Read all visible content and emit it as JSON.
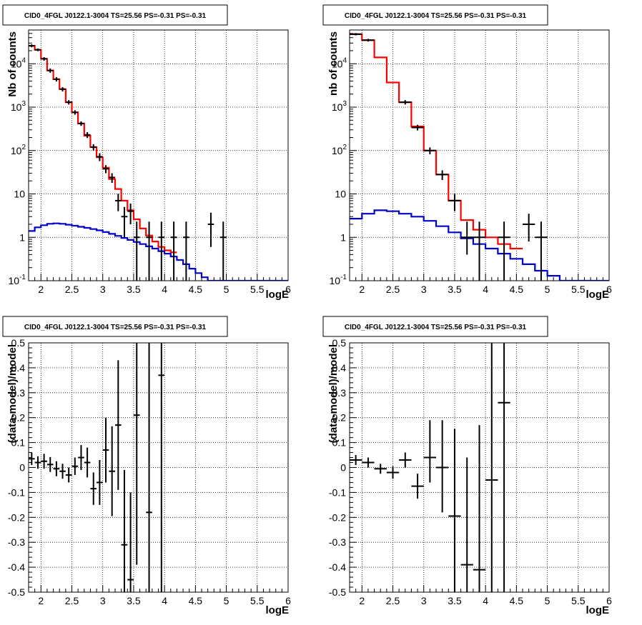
{
  "chart_data": [
    {
      "type": "step-histogram-with-errorbars",
      "title": "CID0_4FGL J0122.1-3004 TS=25.56 PS=-0.31 PS=-0.31",
      "xlabel": "logE",
      "ylabel": "Nb of counts",
      "xlim": [
        1.8,
        6
      ],
      "ylim": [
        0.1,
        60000
      ],
      "yscale": "log",
      "grid": true,
      "x_ticks": [
        "2",
        "2.5",
        "3",
        "3.5",
        "4",
        "4.5",
        "5",
        "5.5",
        "6"
      ],
      "y_ticks": [
        "10^-1",
        "1",
        "10",
        "10^2",
        "10^3",
        "10^4"
      ],
      "series": [
        {
          "color": "#ff0000",
          "bin_width": 0.1,
          "x_start": 1.8,
          "values": [
            26000,
            21000,
            13000,
            7000,
            4400,
            2600,
            1300,
            760,
            420,
            220,
            120,
            70,
            40,
            22,
            13,
            7,
            4.2,
            2.6,
            1.6,
            1.1,
            0.8,
            0.6,
            0.5,
            0.45
          ]
        },
        {
          "color": "#0000cc",
          "bin_width": 0.1,
          "x_start": 1.8,
          "values": [
            1.4,
            1.7,
            1.9,
            2.05,
            2.1,
            2.05,
            1.95,
            1.85,
            1.75,
            1.65,
            1.55,
            1.45,
            1.32,
            1.2,
            1.08,
            0.97,
            0.87,
            0.78,
            0.7,
            0.62,
            0.55,
            0.48,
            0.42,
            0.36,
            0.3,
            0.24,
            0.19,
            0.15,
            0.12,
            0.1,
            0.1,
            0.1,
            0.1,
            0.1,
            0.1,
            0.1,
            0.1,
            0.1,
            0.1,
            0.1,
            0.1,
            0.1
          ]
        }
      ],
      "points": [
        {
          "x": 1.85,
          "y": 26000,
          "el": 2000,
          "eh": 2000
        },
        {
          "x": 1.95,
          "y": 21000,
          "el": 1500,
          "eh": 1500
        },
        {
          "x": 2.05,
          "y": 13000,
          "el": 1200,
          "eh": 1200
        },
        {
          "x": 2.15,
          "y": 7000,
          "el": 800,
          "eh": 800
        },
        {
          "x": 2.25,
          "y": 4400,
          "el": 500,
          "eh": 500
        },
        {
          "x": 2.35,
          "y": 2600,
          "el": 300,
          "eh": 300
        },
        {
          "x": 2.45,
          "y": 1300,
          "el": 150,
          "eh": 150
        },
        {
          "x": 2.55,
          "y": 760,
          "el": 90,
          "eh": 90
        },
        {
          "x": 2.65,
          "y": 420,
          "el": 50,
          "eh": 50
        },
        {
          "x": 2.75,
          "y": 230,
          "el": 35,
          "eh": 35
        },
        {
          "x": 2.85,
          "y": 120,
          "el": 20,
          "eh": 20
        },
        {
          "x": 2.95,
          "y": 72,
          "el": 15,
          "eh": 15
        },
        {
          "x": 3.05,
          "y": 38,
          "el": 8,
          "eh": 8
        },
        {
          "x": 3.15,
          "y": 24,
          "el": 6,
          "eh": 6
        },
        {
          "x": 3.25,
          "y": 7,
          "el": 3,
          "eh": 3
        },
        {
          "x": 3.35,
          "y": 3,
          "el": 2,
          "eh": 2
        },
        {
          "x": 3.45,
          "y": 4,
          "el": 2,
          "eh": 2
        },
        {
          "x": 3.55,
          "y": 1,
          "el": 0.95,
          "eh": 1.3
        },
        {
          "x": 3.75,
          "y": 1,
          "el": 0.95,
          "eh": 1.3
        },
        {
          "x": 3.95,
          "y": 1,
          "el": 0.95,
          "eh": 1.3
        },
        {
          "x": 4.15,
          "y": 1,
          "el": 0.95,
          "eh": 1.3
        },
        {
          "x": 4.35,
          "y": 1,
          "el": 0.95,
          "eh": 1.3
        },
        {
          "x": 4.75,
          "y": 2,
          "el": 1.4,
          "eh": 1.7
        },
        {
          "x": 4.95,
          "y": 1,
          "el": 0.95,
          "eh": 1.3
        }
      ]
    },
    {
      "type": "step-histogram-with-errorbars",
      "title": "CID0_4FGL J0122.1-3004 TS=25.56 PS=-0.31 PS=-0.31",
      "xlabel": "logE",
      "ylabel": "nb of counts",
      "xlim": [
        1.8,
        6
      ],
      "ylim": [
        0.1,
        60000
      ],
      "yscale": "log",
      "grid": true,
      "x_ticks": [
        "2",
        "2.5",
        "3",
        "3.5",
        "4",
        "4.5",
        "5",
        "5.5",
        "6"
      ],
      "y_ticks": [
        "10^-1",
        "1",
        "10",
        "10^2",
        "10^3",
        "10^4"
      ],
      "series": [
        {
          "color": "#ff0000",
          "bin_width": 0.2,
          "x_start": 1.8,
          "values": [
            48000,
            35000,
            14000,
            3700,
            1300,
            360,
            100,
            28,
            7,
            2.5,
            1.5,
            1.0,
            0.7,
            0.55
          ]
        },
        {
          "color": "#0000cc",
          "bin_width": 0.2,
          "x_start": 1.8,
          "values": [
            2.7,
            3.5,
            4.2,
            4.0,
            3.5,
            3.0,
            2.4,
            1.8,
            1.3,
            0.95,
            0.7,
            0.55,
            0.42,
            0.32,
            0.24,
            0.17,
            0.13,
            0.1,
            0.1,
            0.1,
            0.1
          ]
        }
      ],
      "points": [
        {
          "x": 1.9,
          "y": 48000,
          "el": 3000,
          "eh": 3000
        },
        {
          "x": 2.1,
          "y": 35000,
          "el": 2500,
          "eh": 2500
        },
        {
          "x": 2.7,
          "y": 1300,
          "el": 150,
          "eh": 150
        },
        {
          "x": 2.9,
          "y": 340,
          "el": 50,
          "eh": 50
        },
        {
          "x": 3.1,
          "y": 100,
          "el": 18,
          "eh": 18
        },
        {
          "x": 3.3,
          "y": 28,
          "el": 7,
          "eh": 7
        },
        {
          "x": 3.5,
          "y": 7,
          "el": 3,
          "eh": 3
        },
        {
          "x": 3.7,
          "y": 1,
          "el": 0.6,
          "eh": 1.3
        },
        {
          "x": 3.9,
          "y": 1,
          "el": 0.95,
          "eh": 1.3
        },
        {
          "x": 4.3,
          "y": 1,
          "el": 0.95,
          "eh": 1.3
        },
        {
          "x": 4.7,
          "y": 2,
          "el": 1.2,
          "eh": 1.5
        },
        {
          "x": 4.9,
          "y": 1,
          "el": 0.95,
          "eh": 1.3
        }
      ]
    },
    {
      "type": "scatter-with-errorbars",
      "title": "CID0_4FGL J0122.1-3004 TS=25.56 PS=-0.31 PS=-0.31",
      "xlabel": "logE",
      "ylabel": "(data-model)/model",
      "xlim": [
        1.8,
        6
      ],
      "ylim": [
        -0.5,
        0.5
      ],
      "yscale": "linear",
      "grid": true,
      "x_ticks": [
        "2",
        "2.5",
        "3",
        "3.5",
        "4",
        "4.5",
        "5",
        "5.5",
        "6"
      ],
      "y_ticks": [
        "-0.5",
        "-0.4",
        "-0.3",
        "-0.2",
        "-0.1",
        "0",
        "0.1",
        "0.2",
        "0.3",
        "0.4",
        "0.5"
      ],
      "points": [
        {
          "x": 1.85,
          "y": 0.035,
          "el": 0.025,
          "eh": 0.025
        },
        {
          "x": 1.95,
          "y": 0.02,
          "el": 0.025,
          "eh": 0.025
        },
        {
          "x": 2.05,
          "y": 0.025,
          "el": 0.03,
          "eh": 0.03
        },
        {
          "x": 2.15,
          "y": 0.012,
          "el": 0.03,
          "eh": 0.03
        },
        {
          "x": 2.25,
          "y": -0.005,
          "el": 0.03,
          "eh": 0.03
        },
        {
          "x": 2.35,
          "y": -0.015,
          "el": 0.03,
          "eh": 0.03
        },
        {
          "x": 2.45,
          "y": -0.03,
          "el": 0.03,
          "eh": 0.03
        },
        {
          "x": 2.55,
          "y": 0.005,
          "el": 0.035,
          "eh": 0.035
        },
        {
          "x": 2.65,
          "y": 0.04,
          "el": 0.05,
          "eh": 0.05
        },
        {
          "x": 2.75,
          "y": 0.02,
          "el": 0.06,
          "eh": 0.06
        },
        {
          "x": 2.85,
          "y": -0.085,
          "el": 0.065,
          "eh": 0.065
        },
        {
          "x": 2.95,
          "y": -0.06,
          "el": 0.09,
          "eh": 0.09
        },
        {
          "x": 3.05,
          "y": 0.07,
          "el": 0.13,
          "eh": 0.13
        },
        {
          "x": 3.15,
          "y": -0.015,
          "el": 0.18,
          "eh": 0.18
        },
        {
          "x": 3.25,
          "y": 0.17,
          "el": 0.26,
          "eh": 0.26
        },
        {
          "x": 3.35,
          "y": -0.31,
          "el": 0.3,
          "eh": 0.3
        },
        {
          "x": 3.45,
          "y": -0.45,
          "el": 0.2,
          "eh": 0.35
        },
        {
          "x": 3.55,
          "y": 0.21,
          "el": 0.6,
          "eh": 0.6
        },
        {
          "x": 3.75,
          "y": -0.18,
          "el": 1.0,
          "eh": 1.0
        },
        {
          "x": 3.95,
          "y": 0.37,
          "el": 1.0,
          "eh": 1.0
        }
      ],
      "labels": [
        "-0.5",
        "-0.4",
        "-0.3",
        "-0.2",
        "-0.1",
        "0",
        "0.1",
        "0.2",
        "0.3",
        "0.4",
        "0.5"
      ]
    },
    {
      "type": "scatter-with-errorbars",
      "title": "CID0_4FGL J0122.1-3004 TS=25.56 PS=-0.31 PS=-0.31",
      "xlabel": "logE",
      "ylabel": "(data-model)/model",
      "xlim": [
        1.8,
        6
      ],
      "ylim": [
        -0.5,
        0.5
      ],
      "yscale": "linear",
      "grid": true,
      "x_ticks": [
        "2",
        "2.5",
        "3",
        "3.5",
        "4",
        "4.5",
        "5",
        "5.5",
        "6"
      ],
      "y_ticks": [
        "-0.5",
        "-0.4",
        "-0.3",
        "-0.2",
        "-0.1",
        "0",
        "0.1",
        "0.2",
        "0.3",
        "0.4",
        "0.5"
      ],
      "points": [
        {
          "x": 1.9,
          "y": 0.03,
          "el": 0.02,
          "eh": 0.02
        },
        {
          "x": 2.1,
          "y": 0.02,
          "el": 0.02,
          "eh": 0.02
        },
        {
          "x": 2.3,
          "y": -0.005,
          "el": 0.02,
          "eh": 0.02
        },
        {
          "x": 2.5,
          "y": -0.02,
          "el": 0.025,
          "eh": 0.025
        },
        {
          "x": 2.7,
          "y": 0.03,
          "el": 0.03,
          "eh": 0.03
        },
        {
          "x": 2.9,
          "y": -0.075,
          "el": 0.05,
          "eh": 0.05
        },
        {
          "x": 3.1,
          "y": 0.04,
          "el": 0.1,
          "eh": 0.15
        },
        {
          "x": 3.3,
          "y": 0.0,
          "el": 0.18,
          "eh": 0.19
        },
        {
          "x": 3.5,
          "y": -0.195,
          "el": 0.35,
          "eh": 0.35
        },
        {
          "x": 3.7,
          "y": -0.39,
          "el": 0.25,
          "eh": 0.43
        },
        {
          "x": 3.9,
          "y": -0.41,
          "el": 0.3,
          "eh": 0.58
        },
        {
          "x": 4.1,
          "y": -0.05,
          "el": 1.0,
          "eh": 1.0
        },
        {
          "x": 4.3,
          "y": 0.26,
          "el": 1.0,
          "eh": 1.0
        }
      ]
    }
  ]
}
